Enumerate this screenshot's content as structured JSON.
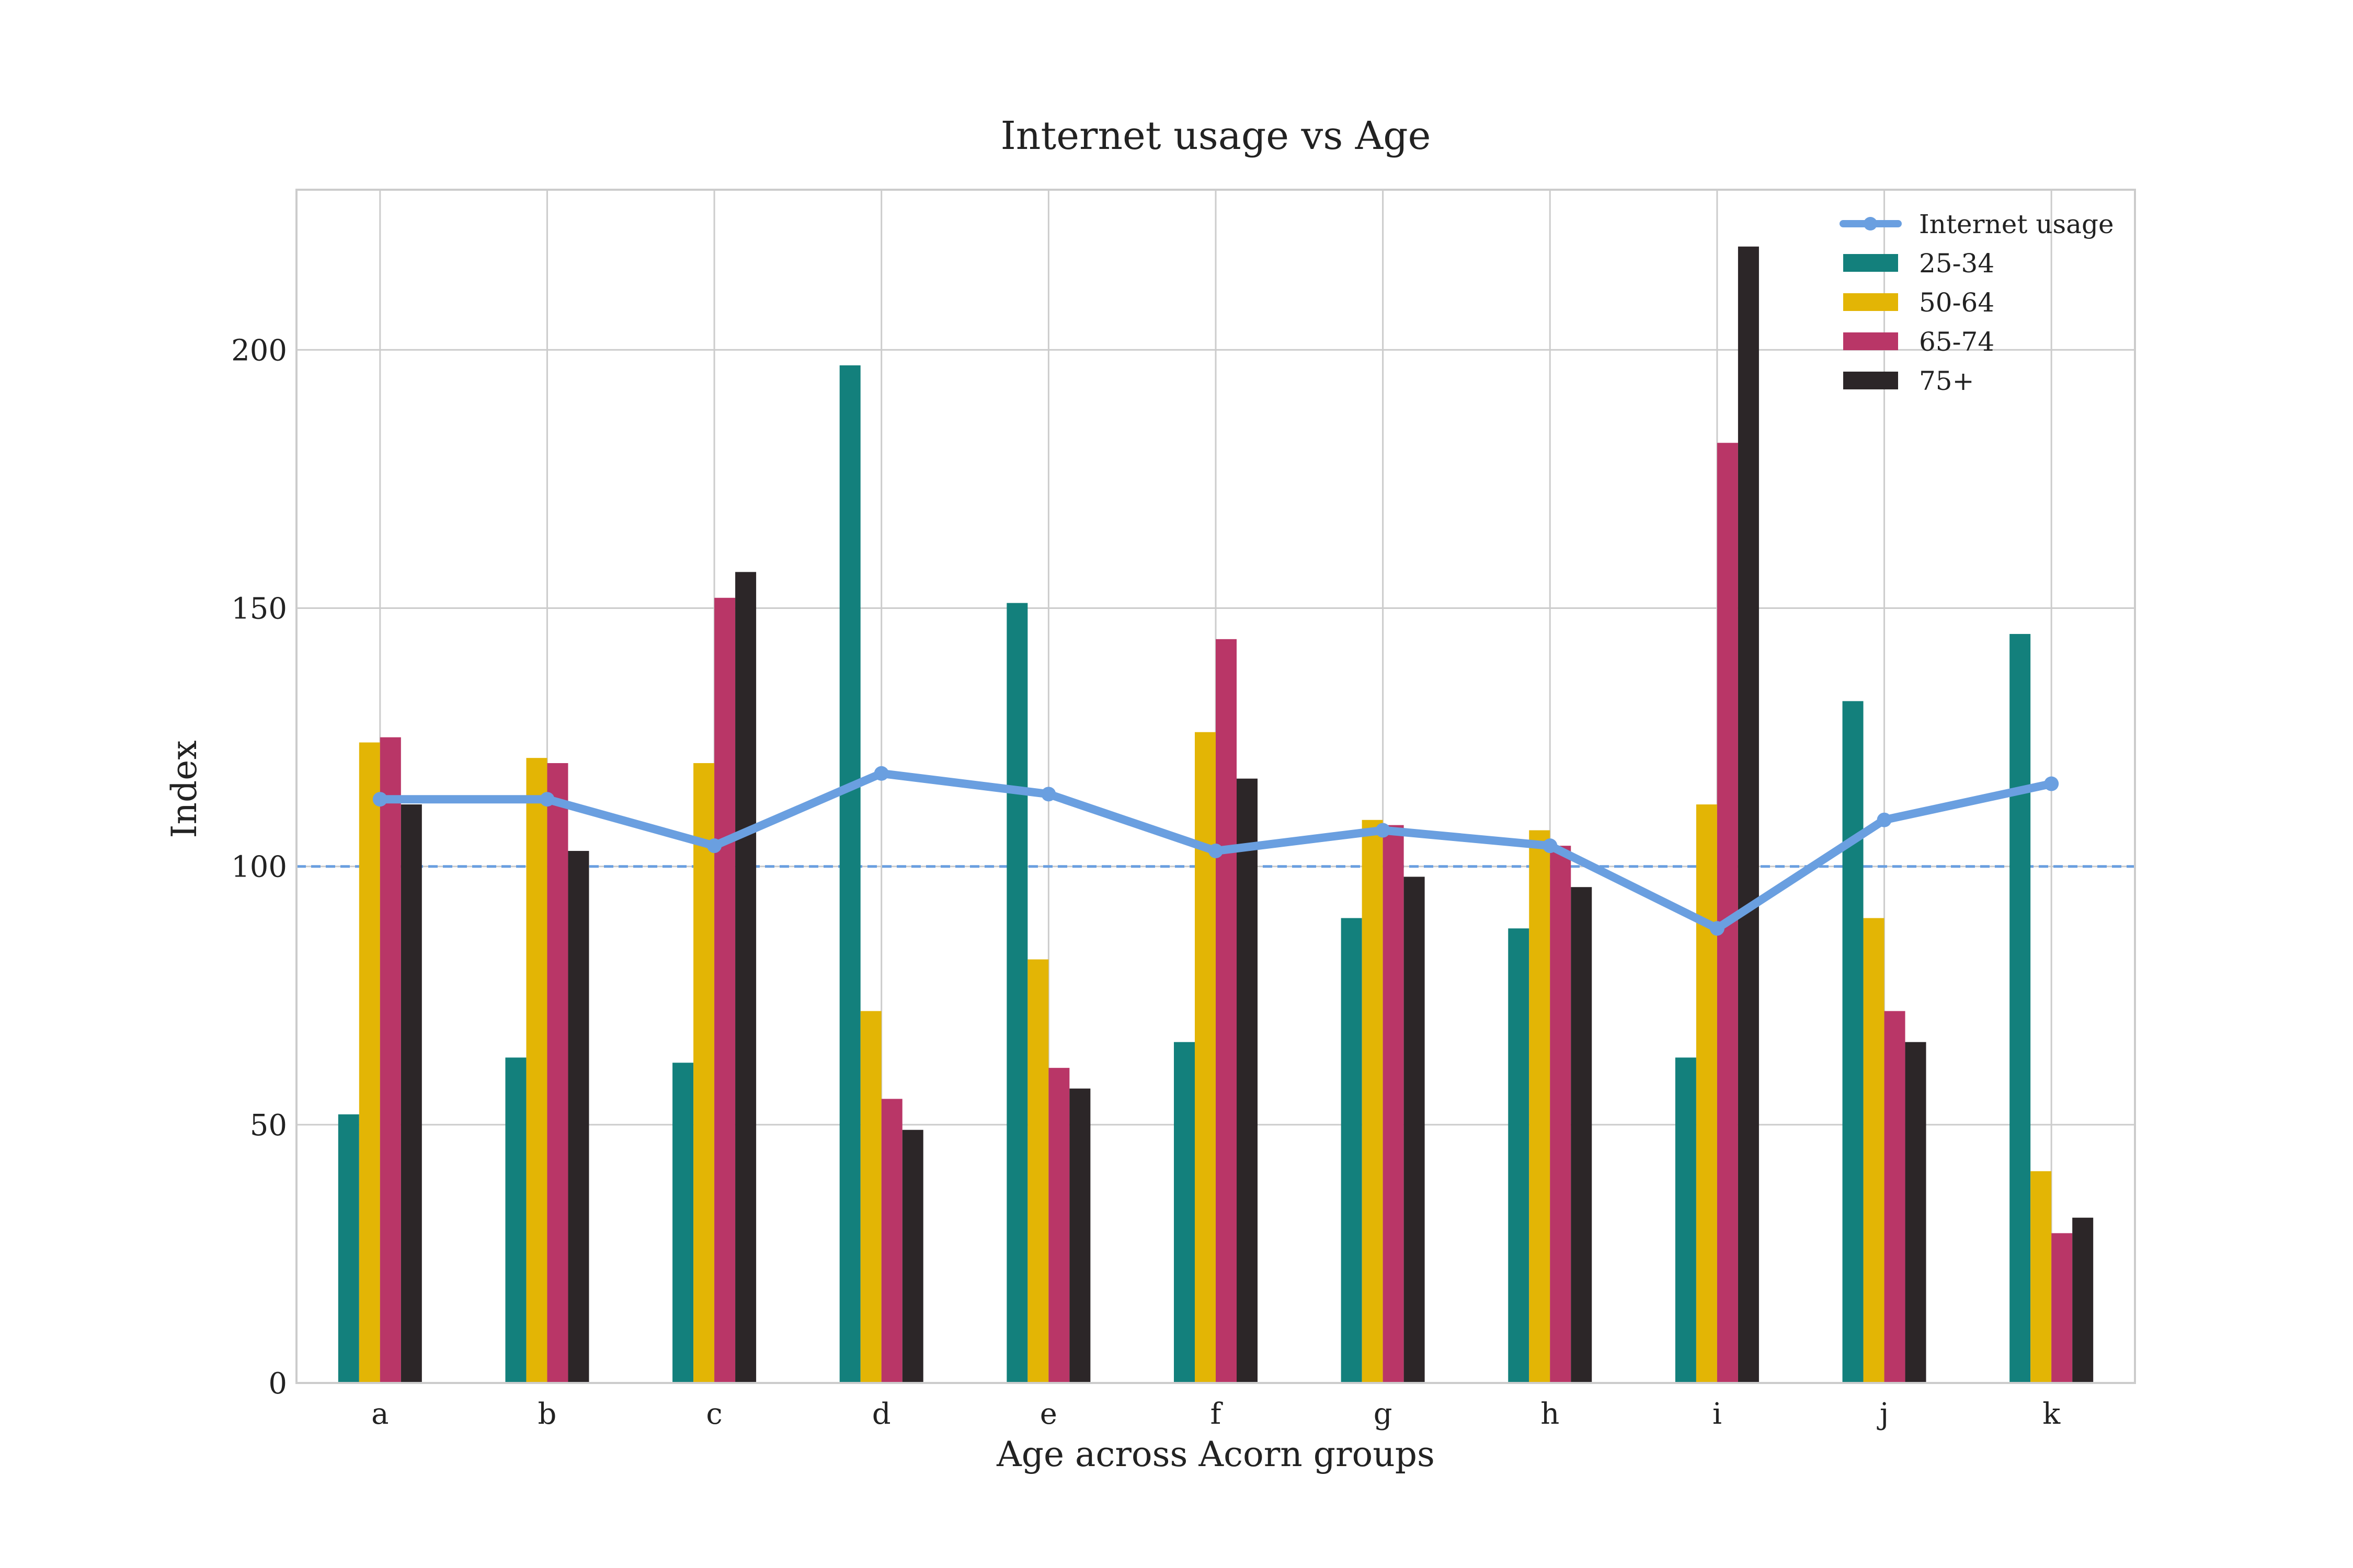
{
  "chart_data": {
    "type": "bar",
    "title": "Internet usage vs Age",
    "xlabel": "Age across Acorn groups",
    "ylabel": "Index",
    "categories": [
      "a",
      "b",
      "c",
      "d",
      "e",
      "f",
      "g",
      "h",
      "i",
      "j",
      "k"
    ],
    "ylim": [
      0,
      231
    ],
    "yticks": [
      0,
      50,
      100,
      150,
      200
    ],
    "grid": true,
    "legend_position": "top-right",
    "reference_line": {
      "y": 100,
      "style": "dashed",
      "color": "#6a9fe0"
    },
    "series": [
      {
        "name": "25-34",
        "color": "#13807c",
        "values": [
          52,
          63,
          62,
          197,
          151,
          66,
          90,
          88,
          63,
          132,
          145
        ]
      },
      {
        "name": "50-64",
        "color": "#e3b505",
        "values": [
          124,
          121,
          120,
          72,
          82,
          126,
          109,
          107,
          112,
          90,
          41
        ]
      },
      {
        "name": "65-74",
        "color": "#b93667",
        "values": [
          125,
          120,
          152,
          55,
          61,
          144,
          108,
          104,
          182,
          72,
          29
        ]
      },
      {
        "name": "75+",
        "color": "#2c2628",
        "values": [
          112,
          103,
          157,
          49,
          57,
          117,
          98,
          96,
          220,
          66,
          32
        ]
      }
    ],
    "line_series": {
      "name": "Internet usage",
      "color": "#6a9fe0",
      "values": [
        113,
        113,
        104,
        118,
        114,
        103,
        107,
        104,
        88,
        109,
        116
      ]
    }
  }
}
